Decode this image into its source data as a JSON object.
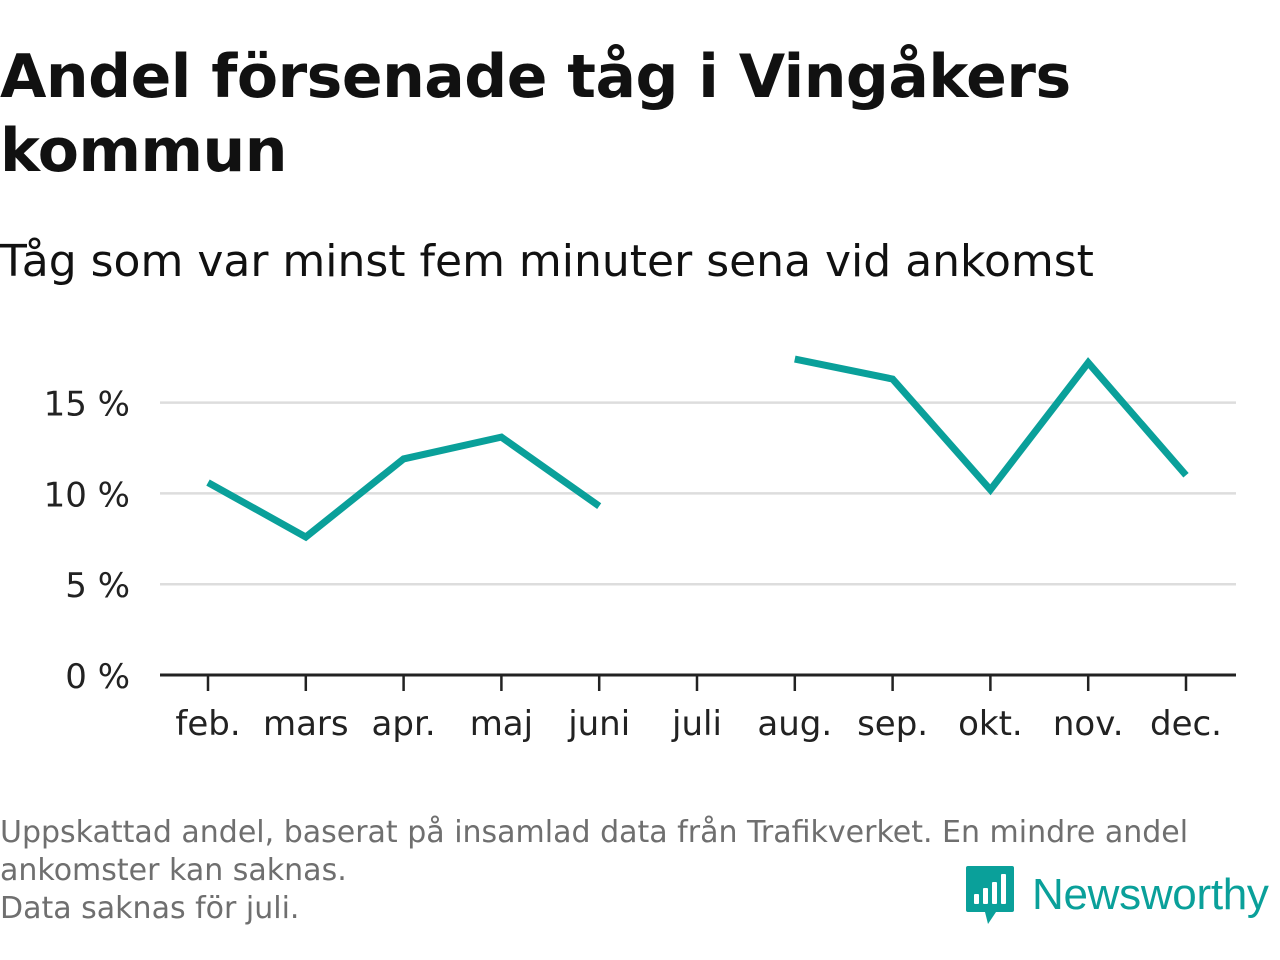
{
  "header": {
    "title": "Andel försenade tåg i Vingåkers kommun",
    "subtitle": "Tåg som var minst fem minuter sena vid ankomst"
  },
  "footer": {
    "note_line1": "Uppskattad andel, baserat på insamlad data från Trafikverket. En mindre andel",
    "note_line2": "ankomster kan saknas.",
    "note_line3": "Data saknas för juli.",
    "brand_name": "Newsworthy",
    "brand_icon": "newsworthy-logo-icon"
  },
  "colors": {
    "line": "#0aa09a",
    "grid": "#dddddd",
    "axis": "#222222",
    "brand": "#0aa09a"
  },
  "chart_data": {
    "type": "line",
    "title": "Andel försenade tåg i Vingåkers kommun",
    "subtitle": "Tåg som var minst fem minuter sena vid ankomst",
    "categories": [
      "feb.",
      "mars",
      "apr.",
      "maj",
      "juni",
      "juli",
      "aug.",
      "sep.",
      "okt.",
      "nov.",
      "dec."
    ],
    "series": [
      {
        "values": [
          10.6,
          7.6,
          11.9,
          13.1,
          9.3,
          null,
          17.4,
          16.3,
          10.2,
          17.2,
          11.0
        ]
      }
    ],
    "yticks": [
      0,
      5,
      10,
      15
    ],
    "ytick_labels": [
      "0 %",
      "5 %",
      "10 %",
      "15 %"
    ],
    "ylim": [
      0,
      19
    ],
    "xlabel": "",
    "ylabel": "",
    "grid": true,
    "legend": "none"
  }
}
